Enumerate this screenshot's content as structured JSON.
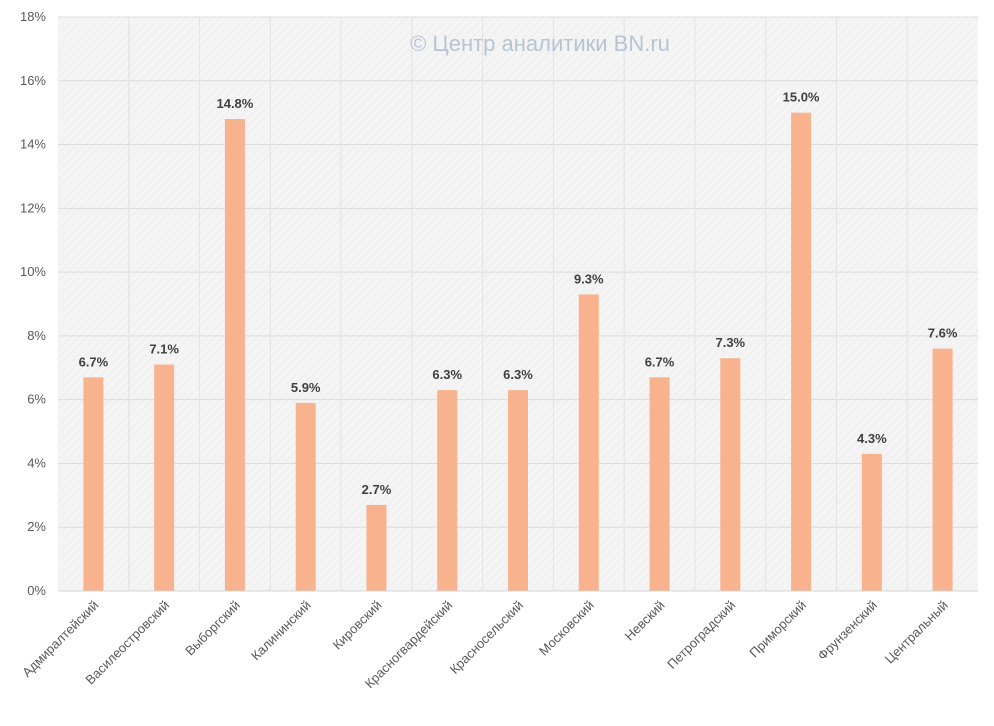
{
  "watermark": "© Центр аналитики BN.ru",
  "chart_data": {
    "type": "bar",
    "categories": [
      "Адмиралтейский",
      "Василеостровский",
      "Выборгский",
      "Калининский",
      "Кировский",
      "Красногвардейский",
      "Красносельский",
      "Московский",
      "Невский",
      "Петроградский",
      "Приморский",
      "Фрунзенский",
      "Центральный"
    ],
    "values": [
      6.7,
      7.1,
      14.8,
      5.9,
      2.7,
      6.3,
      6.3,
      9.3,
      6.7,
      7.3,
      15.0,
      4.3,
      7.6
    ],
    "value_labels": [
      "6.7%",
      "7.1%",
      "14.8%",
      "5.9%",
      "2.7%",
      "6.3%",
      "6.3%",
      "9.3%",
      "6.7%",
      "7.3%",
      "15.0%",
      "4.3%",
      "7.6%"
    ],
    "y_ticks": [
      0,
      2,
      4,
      6,
      8,
      10,
      12,
      14,
      16,
      18
    ],
    "y_tick_labels": [
      "0%",
      "2%",
      "4%",
      "6%",
      "8%",
      "10%",
      "12%",
      "14%",
      "16%",
      "18%"
    ],
    "ylim": [
      0,
      18
    ],
    "grid": true,
    "legend": "none",
    "bar_color": "#F8B28E",
    "plot_bg": "#F4F4F4"
  }
}
